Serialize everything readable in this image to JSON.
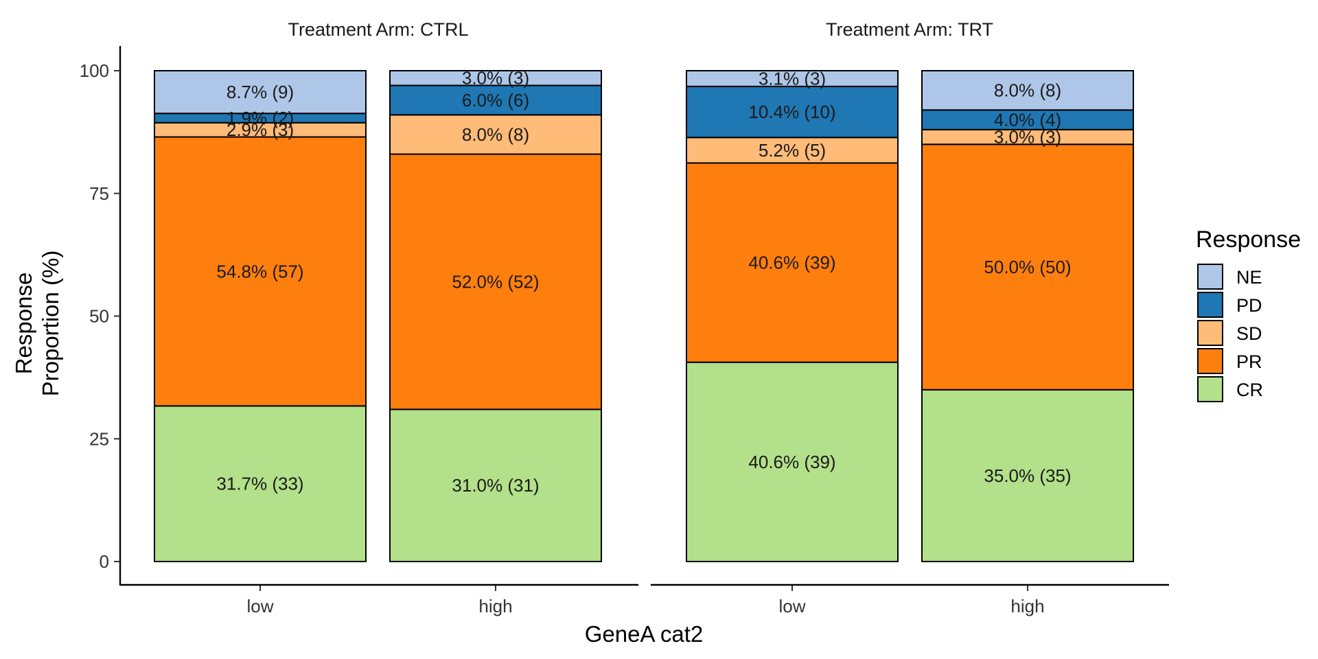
{
  "chart_data": {
    "type": "bar",
    "stacked": true,
    "xlabel": "GeneA cat2",
    "ylabel_lines": [
      "Response",
      "Proportion (%)"
    ],
    "ylim": [
      0,
      100
    ],
    "yticks": [
      0,
      25,
      50,
      75,
      100
    ],
    "categories": [
      "low",
      "high"
    ],
    "legend": {
      "title": "Response",
      "position": "right",
      "entries": [
        {
          "key": "NE",
          "color": "#aec7e8"
        },
        {
          "key": "PD",
          "color": "#1f77b4"
        },
        {
          "key": "SD",
          "color": "#ffbb78"
        },
        {
          "key": "PR",
          "color": "#ff7f0e"
        },
        {
          "key": "CR",
          "color": "#b3e08a"
        }
      ]
    },
    "stack_order_bottom_to_top": [
      "CR",
      "PR",
      "SD",
      "PD",
      "NE"
    ],
    "panels": [
      {
        "title": "Treatment Arm: CTRL",
        "bars": [
          {
            "category": "low",
            "segments": [
              {
                "key": "CR",
                "value": 31.7,
                "label": "31.7% (33)"
              },
              {
                "key": "PR",
                "value": 54.8,
                "label": "54.8% (57)"
              },
              {
                "key": "SD",
                "value": 2.9,
                "label": "2.9% (3)"
              },
              {
                "key": "PD",
                "value": 1.9,
                "label": "1.9% (2)"
              },
              {
                "key": "NE",
                "value": 8.7,
                "label": "8.7% (9)"
              }
            ]
          },
          {
            "category": "high",
            "segments": [
              {
                "key": "CR",
                "value": 31.0,
                "label": "31.0% (31)"
              },
              {
                "key": "PR",
                "value": 52.0,
                "label": "52.0% (52)"
              },
              {
                "key": "SD",
                "value": 8.0,
                "label": "8.0% (8)"
              },
              {
                "key": "PD",
                "value": 6.0,
                "label": "6.0% (6)"
              },
              {
                "key": "NE",
                "value": 3.0,
                "label": "3.0% (3)"
              }
            ]
          }
        ]
      },
      {
        "title": "Treatment Arm: TRT",
        "bars": [
          {
            "category": "low",
            "segments": [
              {
                "key": "CR",
                "value": 40.6,
                "label": "40.6% (39)"
              },
              {
                "key": "PR",
                "value": 40.6,
                "label": "40.6% (39)"
              },
              {
                "key": "SD",
                "value": 5.2,
                "label": "5.2% (5)"
              },
              {
                "key": "PD",
                "value": 10.4,
                "label": "10.4% (10)"
              },
              {
                "key": "NE",
                "value": 3.1,
                "label": "3.1% (3)"
              }
            ]
          },
          {
            "category": "high",
            "segments": [
              {
                "key": "CR",
                "value": 35.0,
                "label": "35.0% (35)"
              },
              {
                "key": "PR",
                "value": 50.0,
                "label": "50.0% (50)"
              },
              {
                "key": "SD",
                "value": 3.0,
                "label": "3.0% (3)"
              },
              {
                "key": "PD",
                "value": 4.0,
                "label": "4.0% (4)"
              },
              {
                "key": "NE",
                "value": 8.0,
                "label": "8.0% (8)"
              }
            ]
          }
        ]
      }
    ]
  }
}
